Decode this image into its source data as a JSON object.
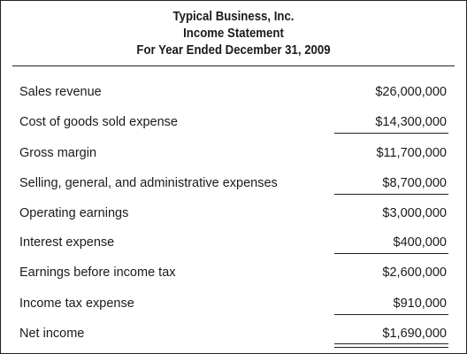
{
  "header": {
    "company": "Typical Business, Inc.",
    "statement": "Income Statement",
    "period": "For Year Ended December 31, 2009"
  },
  "rows": [
    {
      "label": "Sales revenue",
      "amount": "$26,000,000"
    },
    {
      "label": "Cost of goods sold expense",
      "amount": "$14,300,000"
    },
    {
      "label": "Gross margin",
      "amount": "$11,700,000"
    },
    {
      "label": "Selling, general, and administrative expenses",
      "amount": "$8,700,000"
    },
    {
      "label": "Operating earnings",
      "amount": "$3,000,000"
    },
    {
      "label": "Interest expense",
      "amount": "$400,000"
    },
    {
      "label": "Earnings before income tax",
      "amount": "$2,600,000"
    },
    {
      "label": "Income tax expense",
      "amount": "$910,000"
    },
    {
      "label": "Net income",
      "amount": "$1,690,000"
    }
  ]
}
